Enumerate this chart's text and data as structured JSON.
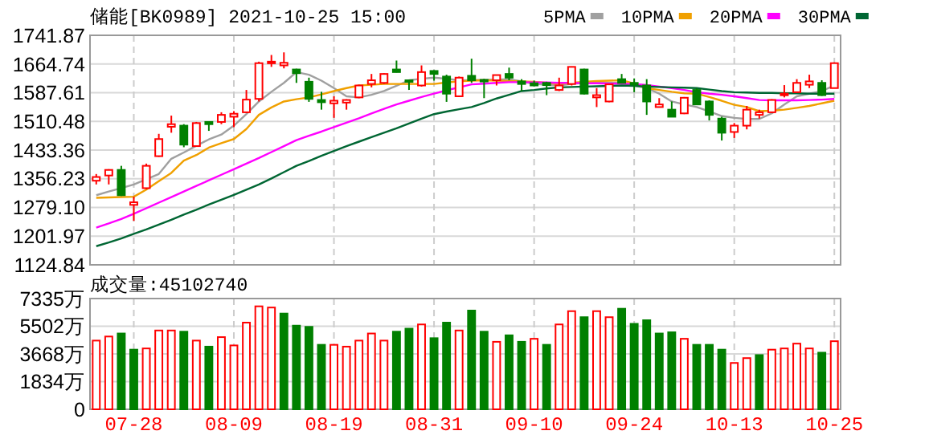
{
  "chart_data": [
    {
      "type": "candlestick",
      "title": "储能[BK0989] 2021-10-25 15:00",
      "categories": [
        null,
        null,
        null,
        null,
        null,
        null,
        null,
        null,
        null,
        null,
        null,
        null,
        null,
        null,
        null,
        null,
        null,
        null,
        null,
        null,
        null,
        null,
        null,
        null,
        null,
        null,
        null,
        null,
        null,
        null,
        null,
        null,
        null,
        null,
        null,
        null,
        null,
        null,
        null,
        null,
        null,
        null,
        null,
        null,
        null,
        null,
        null,
        null,
        null,
        null,
        null,
        null,
        null,
        null,
        null,
        null,
        null,
        null,
        null,
        null
      ],
      "ohlc": [
        [
          1351,
          1369,
          1341,
          1361
        ],
        [
          1365,
          1382,
          1341,
          1380
        ],
        [
          1380,
          1391,
          1310,
          1312
        ],
        [
          1286,
          1308,
          1243,
          1293
        ],
        [
          1331,
          1397,
          1328,
          1391
        ],
        [
          1417,
          1477,
          1415,
          1463
        ],
        [
          1496,
          1526,
          1480,
          1503
        ],
        [
          1499,
          1503,
          1441,
          1448
        ],
        [
          1444,
          1509,
          1442,
          1506
        ],
        [
          1509,
          1511,
          1485,
          1503
        ],
        [
          1509,
          1535,
          1503,
          1528
        ],
        [
          1523,
          1538,
          1495,
          1531
        ],
        [
          1535,
          1595,
          1533,
          1569
        ],
        [
          1571,
          1671,
          1564,
          1667
        ],
        [
          1667,
          1689,
          1657,
          1671
        ],
        [
          1661,
          1696,
          1653,
          1668
        ],
        [
          1650,
          1652,
          1614,
          1640
        ],
        [
          1617,
          1628,
          1563,
          1571
        ],
        [
          1568,
          1590,
          1542,
          1562
        ],
        [
          1559,
          1578,
          1520,
          1566
        ],
        [
          1561,
          1570,
          1542,
          1568
        ],
        [
          1575,
          1609,
          1573,
          1607
        ],
        [
          1611,
          1638,
          1602,
          1621
        ],
        [
          1614,
          1640,
          1611,
          1638
        ],
        [
          1650,
          1674,
          1642,
          1643
        ],
        [
          1621,
          1623,
          1595,
          1618
        ],
        [
          1607,
          1661,
          1604,
          1643
        ],
        [
          1646,
          1648,
          1620,
          1638
        ],
        [
          1631,
          1636,
          1563,
          1585
        ],
        [
          1578,
          1631,
          1576,
          1628
        ],
        [
          1633,
          1679,
          1614,
          1621
        ],
        [
          1622,
          1625,
          1573,
          1618
        ],
        [
          1621,
          1636,
          1607,
          1635
        ],
        [
          1638,
          1655,
          1621,
          1628
        ],
        [
          1618,
          1624,
          1592,
          1611
        ],
        [
          1613,
          1620,
          1605,
          1607
        ],
        [
          1614,
          1617,
          1581,
          1608
        ],
        [
          1595,
          1628,
          1592,
          1607
        ],
        [
          1611,
          1658,
          1607,
          1657
        ],
        [
          1650,
          1652,
          1583,
          1585
        ],
        [
          1575,
          1600,
          1549,
          1581
        ],
        [
          1564,
          1611,
          1562,
          1610
        ],
        [
          1624,
          1638,
          1614,
          1614
        ],
        [
          1614,
          1626,
          1589,
          1611
        ],
        [
          1607,
          1624,
          1528,
          1564
        ],
        [
          1549,
          1573,
          1549,
          1556
        ],
        [
          1542,
          1564,
          1523,
          1523
        ],
        [
          1532,
          1576,
          1530,
          1574
        ],
        [
          1595,
          1600,
          1555,
          1556
        ],
        [
          1564,
          1567,
          1513,
          1528
        ],
        [
          1518,
          1523,
          1459,
          1480
        ],
        [
          1482,
          1506,
          1466,
          1499
        ],
        [
          1499,
          1552,
          1489,
          1542
        ],
        [
          1528,
          1542,
          1518,
          1535
        ],
        [
          1535,
          1570,
          1533,
          1568
        ],
        [
          1581,
          1608,
          1575,
          1585
        ],
        [
          1589,
          1624,
          1587,
          1614
        ],
        [
          1609,
          1636,
          1600,
          1618
        ],
        [
          1614,
          1621,
          1579,
          1581
        ],
        [
          1600,
          1669,
          1600,
          1667
        ]
      ],
      "series": [
        {
          "type": "line",
          "name": "5PMA",
          "color": "#a0a0a0",
          "values": [
            1312,
            1322,
            1331,
            1341,
            1355,
            1369,
            1410,
            1427,
            1445,
            1462,
            1475,
            1499,
            1530,
            1564,
            1590,
            1614,
            1643,
            1636,
            1620,
            1600,
            1578,
            1575,
            1582,
            1592,
            1606,
            1621,
            1625,
            1628,
            1625,
            1621,
            1621,
            1622,
            1623,
            1624,
            1618,
            1611,
            1609,
            1607,
            1611,
            1614,
            1614,
            1614,
            1614,
            1607,
            1600,
            1585,
            1564,
            1556,
            1549,
            1537,
            1525,
            1520,
            1517,
            1517,
            1532,
            1556,
            1578,
            1585,
            1592,
            1607
          ]
        },
        {
          "type": "line",
          "name": "10PMA",
          "color": "#f0a000",
          "values": [
            1305,
            1306,
            1307,
            1308,
            1327,
            1350,
            1372,
            1405,
            1420,
            1440,
            1452,
            1463,
            1490,
            1528,
            1548,
            1564,
            1570,
            1575,
            1583,
            1592,
            1600,
            1607,
            1609,
            1611,
            1611,
            1611,
            1611,
            1611,
            1615,
            1618,
            1620,
            1621,
            1620,
            1619,
            1618,
            1617,
            1614,
            1611,
            1614,
            1617,
            1619,
            1620,
            1621,
            1612,
            1600,
            1595,
            1590,
            1586,
            1585,
            1576,
            1566,
            1555,
            1549,
            1538,
            1539,
            1542,
            1547,
            1552,
            1559,
            1566
          ]
        },
        {
          "type": "line",
          "name": "20PMA",
          "color": "#ff00ff",
          "values": [
            1225,
            1236,
            1248,
            1262,
            1277,
            1292,
            1307,
            1322,
            1337,
            1352,
            1367,
            1382,
            1397,
            1412,
            1428,
            1444,
            1460,
            1472,
            1483,
            1495,
            1507,
            1519,
            1532,
            1544,
            1556,
            1566,
            1576,
            1585,
            1594,
            1602,
            1610,
            1612,
            1614,
            1616,
            1616,
            1615,
            1615,
            1614,
            1614,
            1613,
            1613,
            1612,
            1612,
            1611,
            1608,
            1604,
            1600,
            1595,
            1589,
            1585,
            1582,
            1578,
            1573,
            1568,
            1567,
            1567,
            1567,
            1568,
            1569,
            1571
          ]
        },
        {
          "type": "line",
          "name": "30PMA",
          "color": "#006633",
          "values": [
            1175,
            1185,
            1196,
            1208,
            1220,
            1233,
            1246,
            1260,
            1273,
            1287,
            1300,
            1313,
            1327,
            1341,
            1357,
            1374,
            1391,
            1404,
            1418,
            1431,
            1444,
            1456,
            1468,
            1480,
            1492,
            1505,
            1518,
            1530,
            1537,
            1543,
            1549,
            1560,
            1572,
            1582,
            1592,
            1595,
            1599,
            1602,
            1603,
            1604,
            1605,
            1606,
            1607,
            1606,
            1604,
            1603,
            1602,
            1601,
            1600,
            1596,
            1592,
            1589,
            1588,
            1587,
            1587,
            1586,
            1586,
            1585,
            1585,
            1585
          ]
        }
      ],
      "ylim": [
        1124.84,
        1741.87
      ],
      "yticks": [
        1124.84,
        {
          "value": 1201.97,
          "label": "1201.97"
        },
        {
          "value": 1279.1,
          "label": "1279.10"
        },
        1356.23,
        1433.36,
        1510.48,
        1587.61,
        1664.74,
        1741.87
      ],
      "grid": true,
      "legend": "top right",
      "tick_labels": "y"
    },
    {
      "type": "bar",
      "title": "成交量:45102740",
      "categories": [
        null,
        null,
        null,
        "07-28",
        null,
        null,
        null,
        null,
        null,
        null,
        null,
        "08-09",
        null,
        null,
        null,
        null,
        null,
        null,
        null,
        "08-19",
        null,
        null,
        null,
        null,
        null,
        null,
        null,
        "08-31",
        null,
        null,
        null,
        null,
        null,
        null,
        null,
        "09-10",
        null,
        null,
        null,
        null,
        null,
        null,
        null,
        "09-24",
        null,
        null,
        null,
        null,
        null,
        null,
        null,
        "10-13",
        null,
        null,
        null,
        null,
        null,
        null,
        null,
        "10-25"
      ],
      "values": [
        4550,
        4820,
        5020,
        3950,
        4030,
        5220,
        5220,
        5140,
        4550,
        4150,
        4780,
        4230,
        5740,
        6820,
        6740,
        6340,
        5540,
        5460,
        4270,
        4270,
        4150,
        4550,
        5020,
        4550,
        5140,
        5340,
        5620,
        4710,
        5740,
        5220,
        6540,
        5140,
        4470,
        4900,
        4470,
        4670,
        4270,
        5620,
        6500,
        6100,
        6500,
        6100,
        6660,
        5660,
        5900,
        5020,
        5100,
        4670,
        4270,
        4270,
        3950,
        3070,
        3390,
        3590,
        3950,
        4030,
        4350,
        4030,
        3750,
        4510
      ],
      "colors": [
        "#ff0000",
        "#ff0000",
        "#008000",
        "#008000",
        "#ff0000",
        "#ff0000",
        "#ff0000",
        "#008000",
        "#ff0000",
        "#008000",
        "#ff0000",
        "#ff0000",
        "#ff0000",
        "#ff0000",
        "#ff0000",
        "#008000",
        "#008000",
        "#008000",
        "#008000",
        "#ff0000",
        "#ff0000",
        "#ff0000",
        "#ff0000",
        "#ff0000",
        "#008000",
        "#008000",
        "#ff0000",
        "#008000",
        "#008000",
        "#ff0000",
        "#008000",
        "#008000",
        "#ff0000",
        "#008000",
        "#008000",
        "#ff0000",
        "#008000",
        "#ff0000",
        "#ff0000",
        "#008000",
        "#ff0000",
        "#ff0000",
        "#008000",
        "#008000",
        "#008000",
        "#008000",
        "#008000",
        "#ff0000",
        "#008000",
        "#008000",
        "#008000",
        "#ff0000",
        "#ff0000",
        "#008000",
        "#ff0000",
        "#ff0000",
        "#ff0000",
        "#ff0000",
        "#008000",
        "#ff0000"
      ],
      "ylim": [
        0,
        7335
      ],
      "yticks": [
        0,
        {
          "value": 1834,
          "label": "1834万"
        },
        {
          "value": 3668,
          "label": "3668万"
        },
        {
          "value": 5502,
          "label": "5502万"
        },
        {
          "value": 7335,
          "label": "7335万"
        }
      ],
      "grid": true
    }
  ]
}
